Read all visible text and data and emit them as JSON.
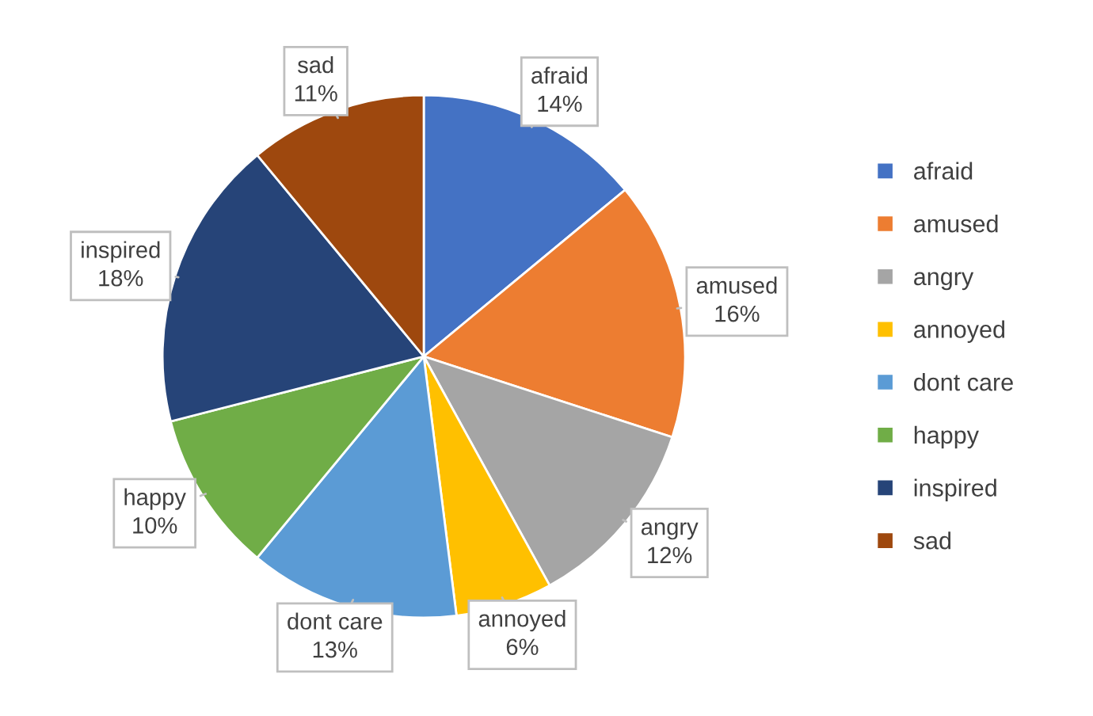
{
  "chart_data": {
    "type": "pie",
    "categories": [
      "afraid",
      "amused",
      "angry",
      "annoyed",
      "dont care",
      "happy",
      "inspired",
      "sad"
    ],
    "values": [
      14,
      16,
      12,
      6,
      13,
      10,
      18,
      11
    ],
    "colors": [
      "#4472c4",
      "#ed7d31",
      "#a5a5a5",
      "#ffc000",
      "#5b9bd5",
      "#70ad47",
      "#264478",
      "#9e480e"
    ],
    "value_labels": [
      "14%",
      "16%",
      "12%",
      "6%",
      "13%",
      "10%",
      "18%",
      "11%"
    ],
    "legend": "right"
  }
}
